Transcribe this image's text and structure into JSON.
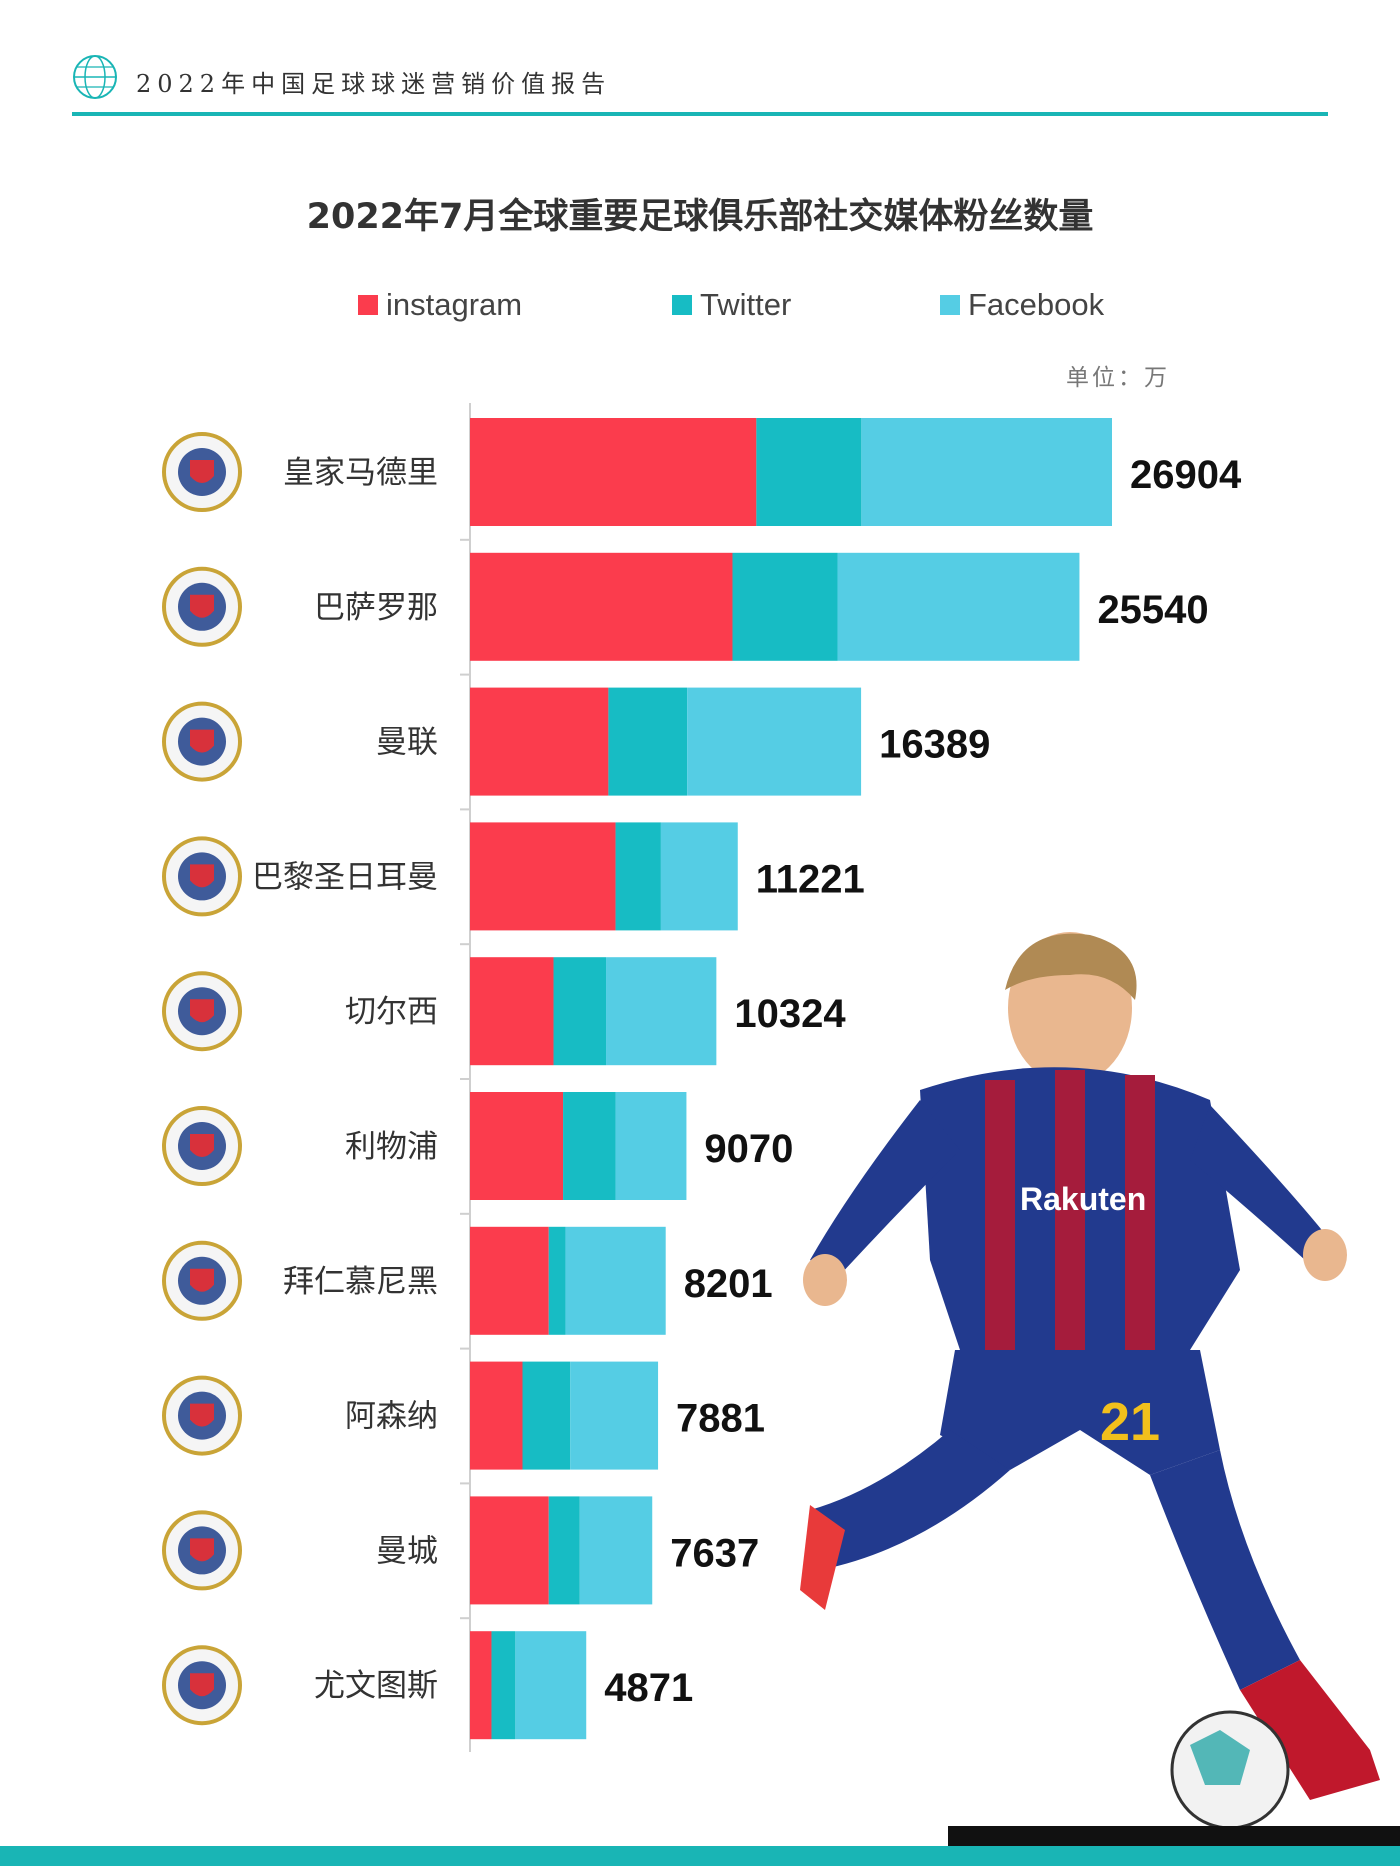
{
  "header": {
    "report_title": "2022年中国足球球迷营销价值报告"
  },
  "chart_data": {
    "type": "bar",
    "orientation": "horizontal",
    "stacked": true,
    "title": "2022年7月全球重要足球俱乐部社交媒体粉丝数量",
    "unit_label": "单位：万",
    "legend_position": "top",
    "categories": [
      "皇家马德里",
      "巴萨罗那",
      "曼联",
      "巴黎圣日耳曼",
      "切尔西",
      "利物浦",
      "拜仁慕尼黑",
      "阿森纳",
      "曼城",
      "尤文图斯"
    ],
    "series": [
      {
        "name": "instagram",
        "color": "#fb3c4d",
        "values": [
          12000,
          11000,
          5800,
          6100,
          3500,
          3900,
          3300,
          2200,
          3300,
          900
        ]
      },
      {
        "name": "Twitter",
        "color": "#17bcc4",
        "values": [
          4400,
          4400,
          3300,
          1900,
          2200,
          2200,
          700,
          2000,
          1300,
          1000
        ]
      },
      {
        "name": "Facebook",
        "color": "#55cde4",
        "values": [
          10504,
          10140,
          7289,
          3221,
          4624,
          2970,
          4201,
          3681,
          3037,
          2971
        ]
      }
    ],
    "totals": [
      "26904",
      "25540",
      "16389",
      "11221",
      "10324",
      "9070",
      "8201",
      "7881",
      "7637",
      "4871"
    ],
    "xlim": [
      0,
      28000
    ],
    "grid": false
  },
  "club_logos": [
    {
      "icon": "real-madrid-crest-icon"
    },
    {
      "icon": "fc-barcelona-crest-icon"
    },
    {
      "icon": "manchester-united-crest-icon"
    },
    {
      "icon": "psg-crest-icon"
    },
    {
      "icon": "chelsea-crest-icon"
    },
    {
      "icon": "liverpool-crest-icon"
    },
    {
      "icon": "bayern-munchen-crest-icon"
    },
    {
      "icon": "arsenal-crest-icon"
    },
    {
      "icon": "manchester-city-crest-icon"
    },
    {
      "icon": "juventus-crest-icon"
    }
  ],
  "colors": {
    "accent": "#19b5b5",
    "title_text": "#333333"
  }
}
